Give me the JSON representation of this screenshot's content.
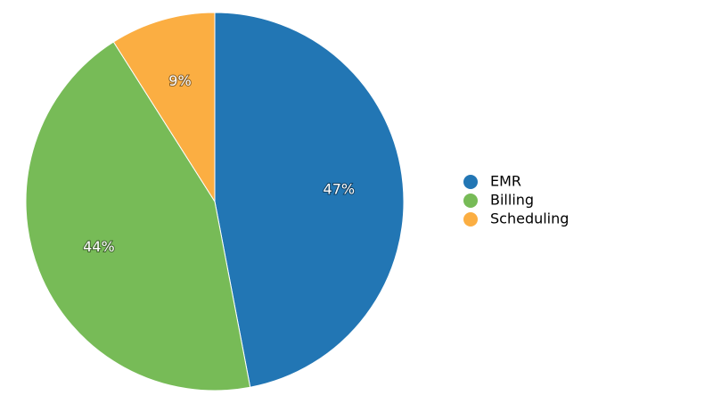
{
  "chart_data": {
    "type": "pie",
    "slices": [
      {
        "label": "EMR",
        "value": 47,
        "display": "47%",
        "color": "#2276b4"
      },
      {
        "label": "Billing",
        "value": 44,
        "display": "44%",
        "color": "#77bb57"
      },
      {
        "label": "Scheduling",
        "value": 9,
        "display": "9%",
        "color": "#fbae42"
      }
    ],
    "start_angle_deg": 0,
    "direction": "clockwise",
    "legend_position": "right"
  }
}
